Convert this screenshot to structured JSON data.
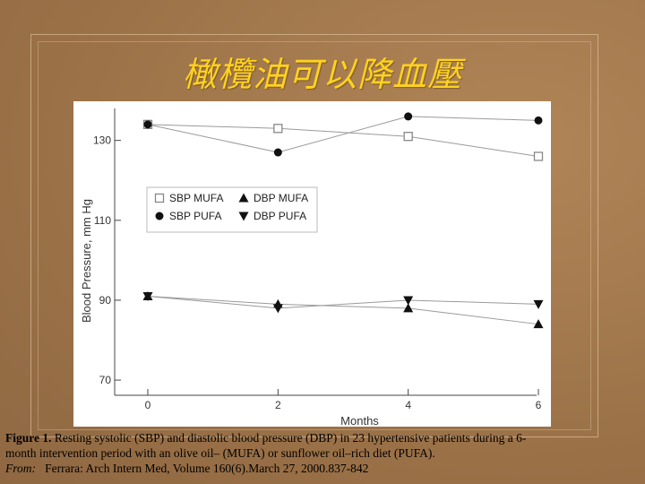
{
  "slide": {
    "title": "橄欖油可以降血壓"
  },
  "caption": {
    "figure_label": "Figure 1.",
    "text_line1": "Resting systolic (SBP) and diastolic blood pressure (DBP) in 23 hypertensive patients during a 6-",
    "text_line2": "month intervention period with an olive oil– (MUFA) or sunflower oil–rich diet (PUFA).",
    "from_label": "From:",
    "source": "Ferrara: Arch Intern Med, Volume 160(6).March 27, 2000.837-842"
  },
  "chart_data": {
    "type": "line",
    "xlabel": "Months",
    "ylabel": "Blood Pressure, mm Hg",
    "x": [
      0,
      2,
      4,
      6
    ],
    "x_ticks": [
      "0",
      "2",
      "4",
      "6"
    ],
    "y_ticks": [
      "70",
      "90",
      "110",
      "130"
    ],
    "ylim": [
      68,
      138
    ],
    "xlim": [
      0,
      6
    ],
    "grid": false,
    "legend_position": "top-left",
    "series": [
      {
        "name": "SBP MUFA",
        "marker": "open-square",
        "values": [
          134,
          133,
          131,
          126
        ]
      },
      {
        "name": "SBP PUFA",
        "marker": "filled-circle",
        "values": [
          134,
          127,
          136,
          135
        ]
      },
      {
        "name": "DBP MUFA",
        "marker": "filled-triangle-up",
        "values": [
          91,
          89,
          88,
          84
        ]
      },
      {
        "name": "DBP PUFA",
        "marker": "filled-triangle-down",
        "values": [
          91,
          88,
          90,
          89
        ]
      }
    ],
    "colors": {
      "line": "#9a9a9a",
      "marker": "#111111",
      "open_marker": "#888888"
    }
  }
}
